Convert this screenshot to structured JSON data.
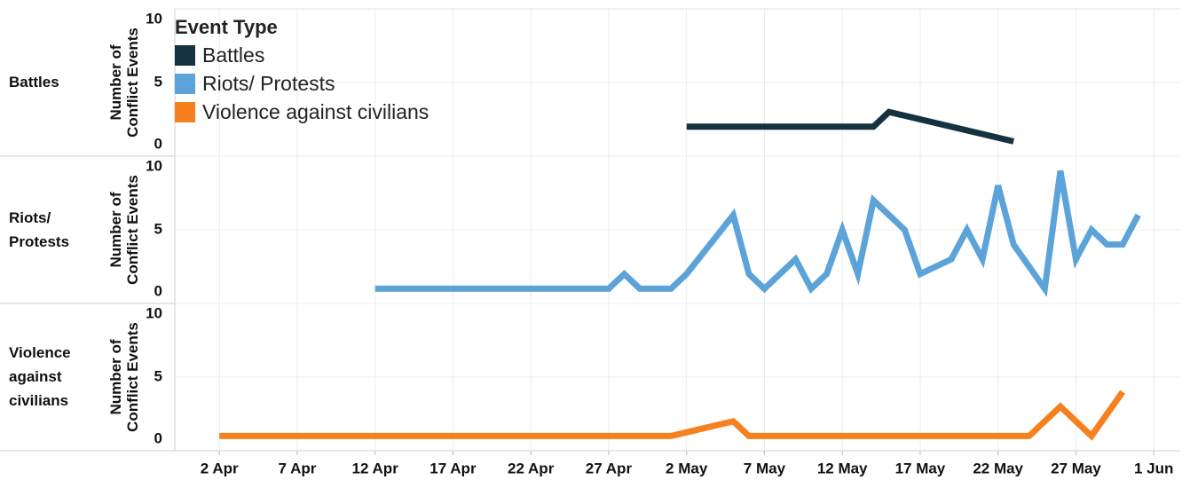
{
  "chart_data": {
    "type": "line",
    "y_label": "Number of Conflict Events",
    "legend_title": "Event Type",
    "legend": "top-left",
    "grid": true,
    "xlim": [
      -0.86,
      63.7
    ],
    "xticks": [
      {
        "value": 2,
        "label": "2 Apr"
      },
      {
        "value": 7,
        "label": "7 Apr"
      },
      {
        "value": 12,
        "label": "12 Apr"
      },
      {
        "value": 17,
        "label": "17 Apr"
      },
      {
        "value": 22,
        "label": "22 Apr"
      },
      {
        "value": 27,
        "label": "27 Apr"
      },
      {
        "value": 32,
        "label": "2 May"
      },
      {
        "value": 37,
        "label": "7 May"
      },
      {
        "value": 42,
        "label": "12 May"
      },
      {
        "value": 47,
        "label": "17 May"
      },
      {
        "value": 52,
        "label": "22 May"
      },
      {
        "value": 57,
        "label": "27 May"
      },
      {
        "value": 62,
        "label": "1 Jun"
      }
    ],
    "ylim": [
      0,
      10
    ],
    "yticks": [
      0,
      5,
      10
    ],
    "series": [
      {
        "name": "Battles",
        "color": "#14323f",
        "x": [
          32,
          44,
          45,
          53
        ],
        "values": [
          2,
          2,
          3,
          1
        ]
      },
      {
        "name": "Riots/ Protests",
        "color": "#5ba3d9",
        "x": [
          12,
          27,
          28,
          29,
          31,
          32,
          35,
          36,
          37,
          39,
          40,
          41,
          42,
          43,
          44,
          46,
          47,
          49,
          50,
          51,
          52,
          53,
          55,
          56,
          57,
          58,
          59,
          60,
          61
        ],
        "values": [
          1,
          1,
          2,
          1,
          1,
          2,
          6,
          2,
          1,
          3,
          1,
          2,
          5,
          2,
          7,
          5,
          2,
          3,
          5,
          3,
          8,
          4,
          1,
          9,
          3,
          5,
          4,
          4,
          6
        ]
      },
      {
        "name": "Violence against civilians",
        "color": "#f7801e",
        "x": [
          2,
          31,
          35,
          36,
          54,
          56,
          58,
          60
        ],
        "values": [
          1,
          1,
          2,
          1,
          1,
          3,
          1,
          4
        ]
      }
    ]
  }
}
